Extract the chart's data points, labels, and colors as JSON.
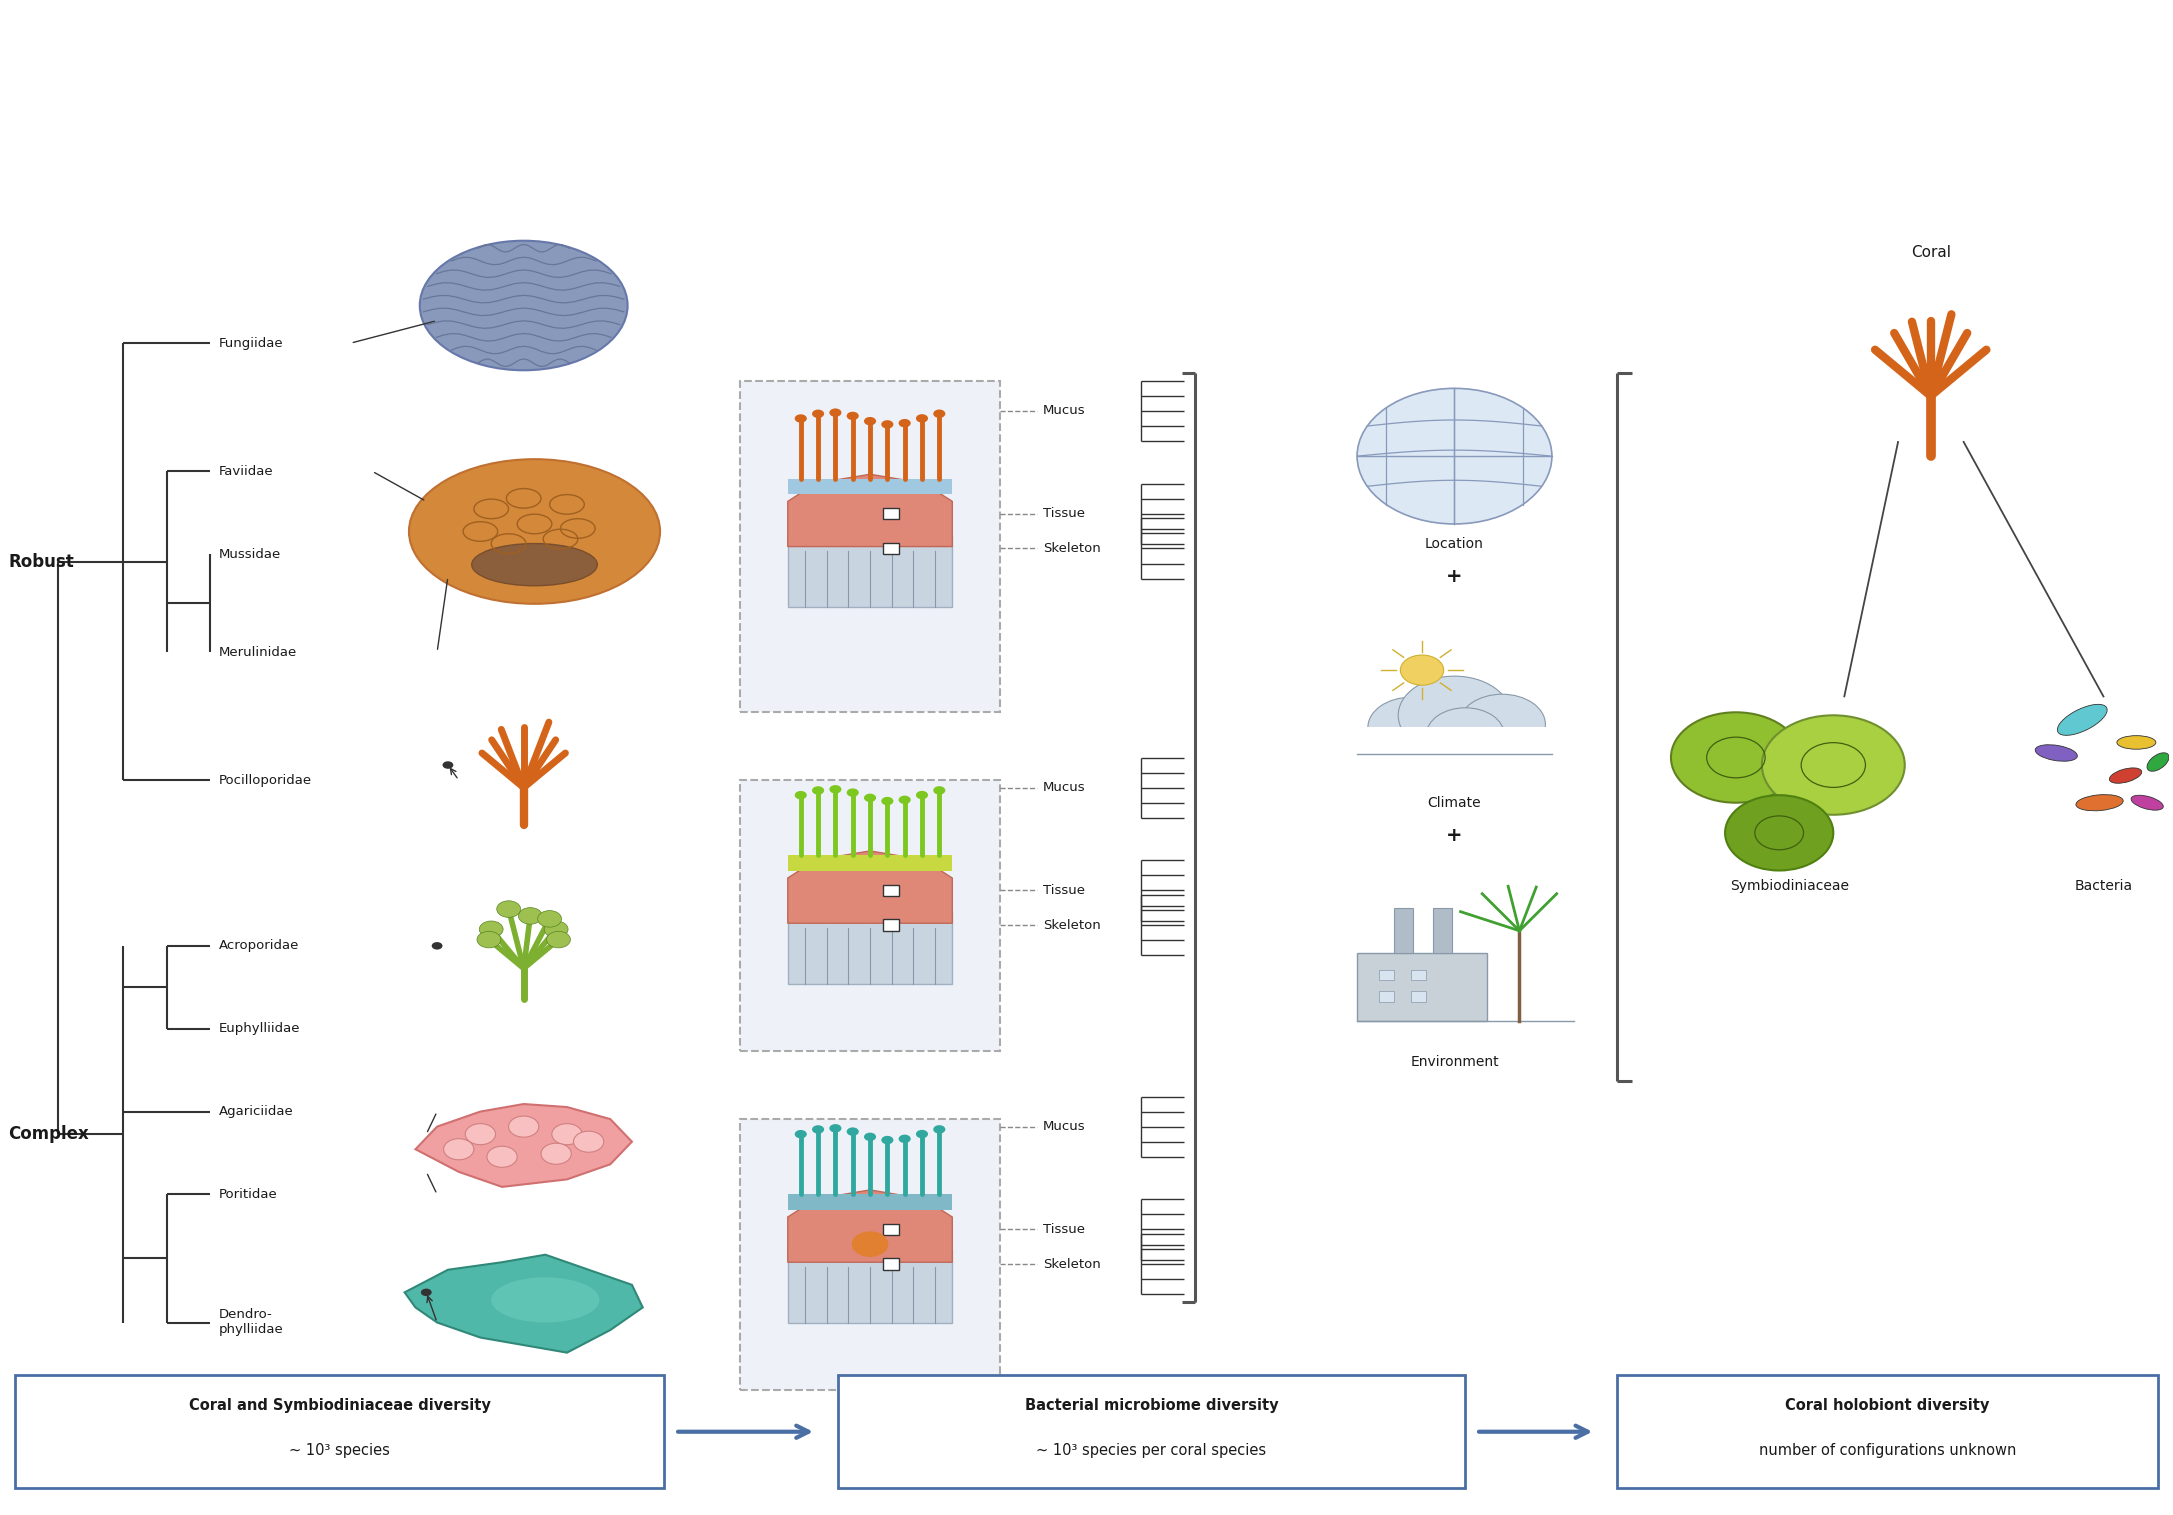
{
  "fig_width": 21.73,
  "fig_height": 15.15,
  "bg_color": "#ffffff",
  "title_color": "#1a1a1a",
  "line_color": "#333333",
  "robust_label": "Robust",
  "complex_label": "Complex",
  "robust_families": [
    "Fungiidae",
    "Faviidae",
    "Mussidae",
    "Merulinidae",
    "Pocilloporidae"
  ],
  "complex_families": [
    "Acroporidae",
    "Euphylliidae",
    "Agariciidae",
    "Poritidae",
    "Dendro-\nphylliidae"
  ],
  "tissue_labels": [
    "Mucus",
    "Tissue",
    "Skeleton"
  ],
  "location_label": "Location",
  "climate_label": "Climate",
  "environment_label": "Environment",
  "plus_sign": "+",
  "coral_label": "Coral",
  "symb_label": "Symbiodiniaceae",
  "bacteria_label": "Bacteria",
  "box1_title": "Coral and Symbiodiniaceae diversity",
  "box1_sub": "~ 10³ species",
  "box2_title": "Bacterial microbiome diversity",
  "box2_sub": "~ 10³ species per coral species",
  "box3_title": "Coral holobiont diversity",
  "box3_sub": "number of configurations unknown",
  "arrow_color": "#4a6fa5",
  "box_border_color": "#4a6fa5",
  "tree_line_color": "#333333",
  "dashed_line_color": "#888888",
  "bracket_color": "#555555",
  "robust_families_y": {
    "Fungiidae": 77.5,
    "Faviidae": 69.0,
    "Mussidae": 63.5,
    "Merulinidae": 57.0,
    "Pocilloporidae": 48.5
  },
  "complex_families_y": {
    "Acroporidae": 37.5,
    "Euphylliidae": 32.0,
    "Agariciidae": 26.5,
    "Poritidae": 21.0,
    "Dendro-\nphylliidae": 12.5
  }
}
